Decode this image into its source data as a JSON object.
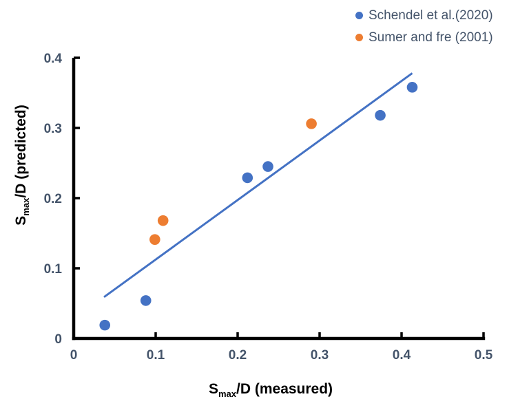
{
  "chart_data": {
    "type": "scatter",
    "title": "",
    "xlabel": "Smax/D (measured)",
    "ylabel": "Smax/D (predicted)",
    "xlabel_rich": {
      "base": "S",
      "sub": "max",
      "rest": "/D (measured)"
    },
    "ylabel_rich": {
      "base": "S",
      "sub": "max",
      "rest": "/D (predicted)"
    },
    "xlim": [
      0,
      0.5
    ],
    "ylim": [
      0,
      0.4
    ],
    "x_ticks": [
      0,
      0.1,
      0.2,
      0.3,
      0.4,
      0.5
    ],
    "x_tick_labels": [
      "0",
      "0.1",
      "0.2",
      "0.3",
      "0.4",
      "0.5"
    ],
    "y_ticks": [
      0,
      0.1,
      0.2,
      0.3,
      0.4
    ],
    "y_tick_labels": [
      "0",
      "0.1",
      "0.2",
      "0.3",
      "0.4"
    ],
    "grid": false,
    "legend_position": "top-right",
    "series": [
      {
        "name": "Schendel et al.(2020)",
        "color": "#4472C4",
        "marker": "circle",
        "points": [
          [
            0.038,
            0.019
          ],
          [
            0.088,
            0.054
          ],
          [
            0.212,
            0.229
          ],
          [
            0.237,
            0.245
          ],
          [
            0.374,
            0.318
          ],
          [
            0.413,
            0.358
          ]
        ]
      },
      {
        "name": "Sumer and fre (2001)",
        "color": "#ED7D31",
        "marker": "circle",
        "points": [
          [
            0.099,
            0.141
          ],
          [
            0.109,
            0.168
          ],
          [
            0.29,
            0.306
          ]
        ]
      }
    ],
    "trendline": {
      "color": "#4472C4",
      "points": [
        [
          0.037,
          0.059
        ],
        [
          0.413,
          0.378
        ]
      ]
    },
    "style": {
      "axis_color": "#000000",
      "tick_label_color": "#44546A",
      "legend_text_color": "#44546A",
      "axis_title_color": "#000000"
    }
  }
}
